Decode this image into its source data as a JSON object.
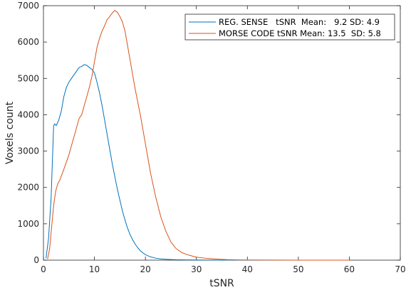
{
  "chart_data": {
    "type": "line",
    "xlabel": "tSNR",
    "ylabel": "Voxels count",
    "xlim": [
      0,
      70
    ],
    "ylim": [
      0,
      7000
    ],
    "xticks": [
      0,
      10,
      20,
      30,
      40,
      50,
      60,
      70
    ],
    "yticks": [
      0,
      1000,
      2000,
      3000,
      4000,
      5000,
      6000,
      7000
    ],
    "grid": false,
    "legend_position": "top-right",
    "series": [
      {
        "name": "REG. SENSE   tSNR  Mean:   9.2 SD: 4.9",
        "color": "#0072BD",
        "x": [
          0.5,
          1.0,
          1.5,
          2.0,
          2.2,
          2.5,
          3,
          3.5,
          4,
          4.5,
          5,
          5.5,
          6,
          6.5,
          7,
          7.5,
          8,
          8.5,
          9,
          9.5,
          10,
          10.5,
          11,
          11.5,
          12,
          12.5,
          13,
          13.5,
          14,
          14.5,
          15,
          15.5,
          16,
          16.5,
          17,
          17.5,
          18,
          18.5,
          19,
          19.5,
          20,
          21,
          22,
          23,
          24,
          25,
          26,
          28,
          30,
          32,
          34,
          36,
          38,
          40,
          45,
          50,
          55,
          60
        ],
        "y": [
          50,
          600,
          1700,
          3700,
          3750,
          3700,
          3850,
          4100,
          4500,
          4750,
          4900,
          5000,
          5100,
          5200,
          5300,
          5330,
          5380,
          5360,
          5300,
          5250,
          5150,
          4900,
          4600,
          4250,
          3850,
          3450,
          3050,
          2650,
          2300,
          1950,
          1650,
          1350,
          1100,
          880,
          700,
          560,
          440,
          340,
          260,
          200,
          150,
          90,
          55,
          35,
          25,
          18,
          12,
          8,
          5,
          3,
          2,
          1,
          1,
          0,
          0,
          0,
          0,
          0
        ]
      },
      {
        "name": "MORSE CODE tSNR Mean: 13.5  SD: 5.8",
        "color": "#D95319",
        "x": [
          0.8,
          1.2,
          1.6,
          2.0,
          2.4,
          2.8,
          3.2,
          3.6,
          4,
          4.5,
          5,
          5.5,
          6,
          6.5,
          7,
          7.5,
          8,
          8.5,
          9,
          9.5,
          10,
          10.5,
          11,
          11.5,
          12,
          12.5,
          13,
          13.5,
          14,
          14.5,
          15,
          15.5,
          16,
          16.5,
          17,
          17.5,
          18,
          19,
          20,
          21,
          22,
          23,
          24,
          25,
          26,
          27,
          28,
          29,
          30,
          32,
          34,
          36,
          38,
          40,
          45,
          50,
          55,
          60
        ],
        "y": [
          30,
          300,
          900,
          1500,
          1900,
          2100,
          2200,
          2350,
          2500,
          2700,
          2900,
          3150,
          3400,
          3650,
          3900,
          4000,
          4250,
          4500,
          4750,
          5050,
          5450,
          5850,
          6100,
          6300,
          6450,
          6620,
          6700,
          6800,
          6870,
          6820,
          6700,
          6550,
          6300,
          5900,
          5500,
          5100,
          4700,
          4000,
          3200,
          2400,
          1750,
          1200,
          800,
          500,
          320,
          220,
          160,
          120,
          80,
          50,
          30,
          15,
          8,
          4,
          2,
          1,
          0,
          0
        ]
      }
    ]
  }
}
